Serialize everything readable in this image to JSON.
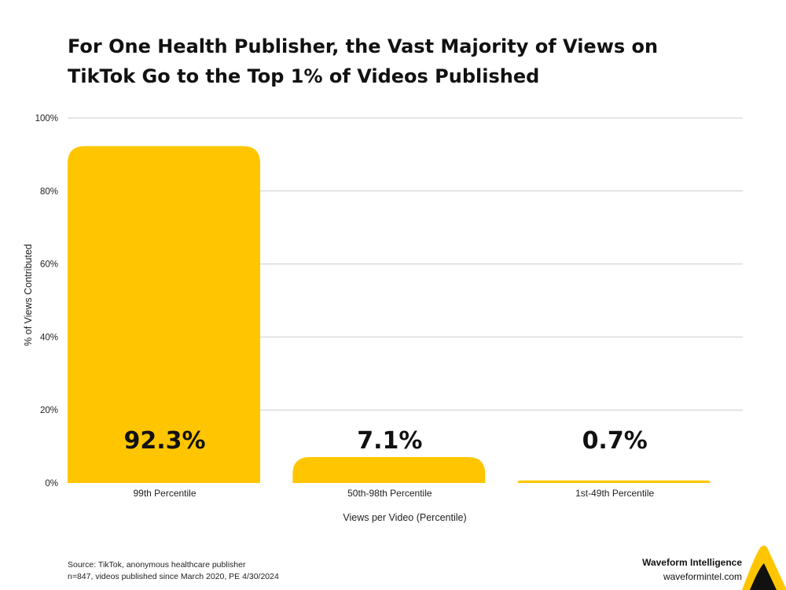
{
  "chart_data": {
    "type": "bar",
    "title_lines": [
      "For One Health Publisher, the Vast Majority of Views on",
      "TikTok Go to the Top 1% of Videos Published"
    ],
    "categories": [
      "99th Percentile",
      "50th-98th Percentile",
      "1st-49th Percentile"
    ],
    "values": [
      92.3,
      7.1,
      0.7
    ],
    "data_labels": [
      "92.3%",
      "7.1%",
      "0.7%"
    ],
    "xlabel": "Views per Video (Percentile)",
    "ylabel": "% of Views Contributed",
    "ylim": [
      0,
      100
    ],
    "yticks": [
      0,
      20,
      40,
      60,
      80,
      100
    ],
    "ytick_labels": [
      "0%",
      "20%",
      "40%",
      "60%",
      "80%",
      "100%"
    ],
    "grid": true,
    "bar_color": "#FFC600",
    "gridline_color": "#CCCCCC"
  },
  "footer": {
    "source_lines": [
      "Source: TikTok, anonymous healthcare publisher",
      "n=847, videos published since March 2020, PE 4/30/2024"
    ],
    "brand_name": "Waveform Intelligence",
    "brand_url": "waveformintel.com",
    "logo_color": "#FFC600"
  }
}
